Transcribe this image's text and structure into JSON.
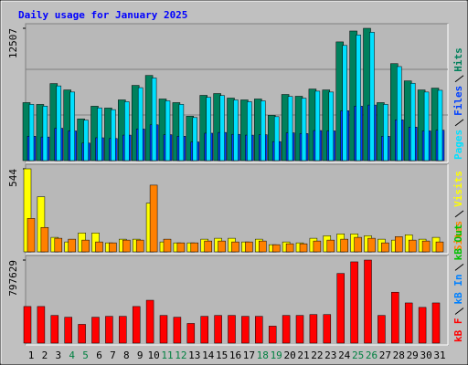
{
  "chart_data": [
    {
      "type": "bar",
      "title": "Daily usage for January 2025",
      "ylim": [
        0,
        12507
      ],
      "yticks": [
        12507
      ],
      "series": [
        {
          "name": "Hits",
          "color": "#00805c",
          "values": [
            5482,
            5311,
            7281,
            6681,
            3940,
            5140,
            4968,
            5739,
            7110,
            8052,
            5825,
            5482,
            4197,
            6168,
            6339,
            5911,
            5739,
            5825,
            4283,
            6253,
            6082,
            6767,
            6681,
            11221,
            12250,
            12507,
            5482,
            9166,
            7538,
            6681,
            6853
          ]
        },
        {
          "name": "Files",
          "color": "#0040ff",
          "values": [
            2302,
            2231,
            3058,
            2806,
            1655,
            2159,
            2087,
            2410,
            2986,
            3382,
            2447,
            2302,
            1763,
            2591,
            2662,
            2483,
            2410,
            2447,
            1799,
            2626,
            2554,
            2842,
            2806,
            4713,
            5145,
            5253,
            2302,
            3850,
            3166,
            2806,
            2878
          ]
        },
        {
          "name": "Pages",
          "color": "#00e0ff",
          "values": [
            5318,
            5152,
            7063,
            6481,
            3822,
            4986,
            4819,
            5567,
            6897,
            7810,
            5650,
            5318,
            4071,
            5983,
            6149,
            5734,
            5567,
            5650,
            4155,
            6065,
            5900,
            6564,
            6481,
            10885,
            11883,
            12132,
            5318,
            8891,
            7312,
            6481,
            6647
          ]
        }
      ]
    },
    {
      "type": "bar",
      "ylim": [
        0,
        544
      ],
      "yticks": [
        544
      ],
      "series": [
        {
          "name": "Visits",
          "color": "#ffff00",
          "values": [
            544,
            361,
            95,
            65,
            124,
            124,
            59,
            83,
            83,
            319,
            65,
            59,
            59,
            83,
            89,
            89,
            65,
            83,
            47,
            65,
            59,
            89,
            106,
            118,
            118,
            106,
            83,
            77,
            112,
            83,
            95
          ]
        },
        {
          "name": "Sites",
          "color": "#ff8000",
          "values": [
            219,
            160,
            89,
            83,
            77,
            65,
            59,
            77,
            77,
            437,
            83,
            59,
            59,
            71,
            71,
            65,
            65,
            71,
            47,
            53,
            53,
            71,
            77,
            83,
            95,
            89,
            59,
            100,
            77,
            71,
            65
          ]
        }
      ]
    },
    {
      "type": "bar",
      "ylim": [
        0,
        797629
      ],
      "yticks": [
        797629
      ],
      "categories": [
        "1",
        "2",
        "3",
        "4",
        "5",
        "6",
        "7",
        "8",
        "9",
        "10",
        "11",
        "12",
        "13",
        "14",
        "15",
        "16",
        "17",
        "18",
        "19",
        "20",
        "21",
        "22",
        "23",
        "24",
        "25",
        "26",
        "27",
        "28",
        "29",
        "30",
        "31"
      ],
      "category_colors": [
        "#000000",
        "#000000",
        "#000000",
        "#008040",
        "#008040",
        "#000000",
        "#000000",
        "#000000",
        "#000000",
        "#000000",
        "#008040",
        "#008040",
        "#000000",
        "#000000",
        "#000000",
        "#000000",
        "#000000",
        "#008040",
        "#008040",
        "#000000",
        "#000000",
        "#000000",
        "#000000",
        "#000000",
        "#008040",
        "#008040",
        "#000000",
        "#000000",
        "#000000",
        "#000000",
        "#000000"
      ],
      "series": [
        {
          "name": "kB F",
          "color": "#ff0000",
          "values": [
            351657,
            351657,
            265887,
            248733,
            180117,
            248733,
            257310,
            257310,
            351657,
            411696,
            265887,
            248733,
            188694,
            257310,
            265887,
            265887,
            257310,
            257310,
            162963,
            265887,
            265887,
            274464,
            274464,
            669006,
            780507,
            797629,
            265887,
            488889,
            385965,
            343080,
            385965
          ]
        }
      ],
      "extra_legend": [
        {
          "name": "kB In",
          "color": "#0080ff"
        },
        {
          "name": "kB Out",
          "color": "#00c000"
        }
      ]
    }
  ]
}
